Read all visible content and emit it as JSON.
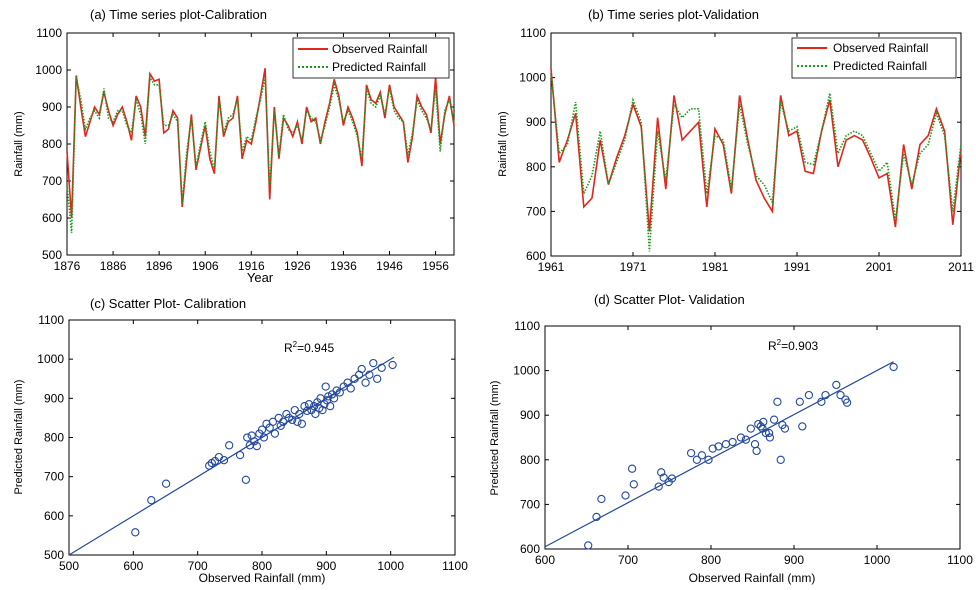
{
  "colors": {
    "observed": "#e1261c",
    "predicted": "#1a9a1a",
    "scatter": "#23489e",
    "axis": "#000000"
  },
  "chart_data": [
    {
      "id": "a",
      "type": "line",
      "title": "(a) Time series plot-Calibration",
      "xlabel": "Year",
      "ylabel": "Rainfall (mm)",
      "xlim": [
        1876,
        1960
      ],
      "ylim": [
        500,
        1100
      ],
      "xticks": [
        1876,
        1886,
        1896,
        1906,
        1916,
        1926,
        1936,
        1946,
        1956
      ],
      "yticks": [
        500,
        600,
        700,
        800,
        900,
        1000,
        1100
      ],
      "legend": {
        "position": "top-right",
        "entries": [
          "Observed Rainfall",
          "Predicted Rainfall"
        ]
      },
      "x": [
        1876,
        1877,
        1878,
        1879,
        1880,
        1881,
        1882,
        1883,
        1884,
        1885,
        1886,
        1887,
        1888,
        1889,
        1890,
        1891,
        1892,
        1893,
        1894,
        1895,
        1896,
        1897,
        1898,
        1899,
        1900,
        1901,
        1902,
        1903,
        1904,
        1905,
        1906,
        1907,
        1908,
        1909,
        1910,
        1911,
        1912,
        1913,
        1914,
        1915,
        1916,
        1917,
        1918,
        1919,
        1920,
        1921,
        1922,
        1923,
        1924,
        1925,
        1926,
        1927,
        1928,
        1929,
        1930,
        1931,
        1932,
        1933,
        1934,
        1935,
        1936,
        1937,
        1938,
        1939,
        1940,
        1941,
        1942,
        1943,
        1944,
        1945,
        1946,
        1947,
        1948,
        1949,
        1950,
        1951,
        1952,
        1953,
        1954,
        1955,
        1956,
        1957,
        1958,
        1959,
        1960
      ],
      "series": [
        {
          "name": "Observed Rainfall",
          "style": "solid",
          "values": [
            780,
            600,
            985,
            900,
            820,
            860,
            900,
            880,
            940,
            890,
            850,
            880,
            900,
            860,
            810,
            930,
            900,
            820,
            990,
            970,
            975,
            830,
            840,
            890,
            870,
            630,
            760,
            880,
            730,
            790,
            850,
            760,
            720,
            930,
            820,
            860,
            870,
            930,
            760,
            810,
            800,
            860,
            930,
            1005,
            650,
            900,
            760,
            870,
            850,
            820,
            860,
            800,
            900,
            860,
            870,
            800,
            860,
            910,
            975,
            930,
            850,
            900,
            870,
            830,
            740,
            960,
            920,
            910,
            940,
            870,
            960,
            900,
            880,
            860,
            750,
            820,
            930,
            900,
            880,
            830,
            980,
            800,
            880,
            930,
            850
          ]
        },
        {
          "name": "Predicted Rainfall",
          "style": "dotted",
          "values": [
            690,
            560,
            980,
            920,
            840,
            870,
            890,
            870,
            950,
            870,
            860,
            890,
            890,
            850,
            830,
            920,
            880,
            800,
            980,
            960,
            960,
            850,
            850,
            880,
            860,
            640,
            780,
            870,
            740,
            800,
            860,
            780,
            730,
            920,
            830,
            870,
            880,
            920,
            780,
            820,
            810,
            870,
            920,
            980,
            680,
            890,
            770,
            880,
            840,
            830,
            850,
            810,
            890,
            870,
            860,
            810,
            850,
            900,
            960,
            920,
            860,
            890,
            860,
            820,
            760,
            950,
            910,
            900,
            930,
            880,
            950,
            890,
            870,
            860,
            770,
            830,
            920,
            890,
            870,
            840,
            950,
            780,
            890,
            920,
            860
          ]
        }
      ]
    },
    {
      "id": "b",
      "type": "line",
      "title": "(b) Time series plot-Validation",
      "xlabel": "",
      "ylabel": "Rainfall (mm)",
      "xlim": [
        1961,
        2011
      ],
      "ylim": [
        600,
        1100
      ],
      "xticks": [
        1961,
        1971,
        1981,
        1991,
        2001,
        2011
      ],
      "yticks": [
        600,
        700,
        800,
        900,
        1000,
        1100
      ],
      "legend": {
        "position": "top-right",
        "entries": [
          "Observed Rainfall",
          "Predicted Rainfall"
        ]
      },
      "x": [
        1961,
        1962,
        1963,
        1964,
        1965,
        1966,
        1967,
        1968,
        1969,
        1970,
        1971,
        1972,
        1973,
        1974,
        1975,
        1976,
        1977,
        1978,
        1979,
        1980,
        1981,
        1982,
        1983,
        1984,
        1985,
        1986,
        1987,
        1988,
        1989,
        1990,
        1991,
        1992,
        1993,
        1994,
        1995,
        1996,
        1997,
        1998,
        1999,
        2000,
        2001,
        2002,
        2003,
        2004,
        2005,
        2006,
        2007,
        2008,
        2009,
        2010,
        2011
      ],
      "series": [
        {
          "name": "Observed Rainfall",
          "style": "solid",
          "values": [
            1020,
            810,
            860,
            920,
            710,
            730,
            860,
            760,
            820,
            870,
            940,
            890,
            655,
            910,
            750,
            960,
            860,
            880,
            900,
            710,
            885,
            850,
            740,
            960,
            860,
            770,
            730,
            700,
            960,
            870,
            880,
            790,
            785,
            880,
            950,
            800,
            860,
            870,
            860,
            820,
            775,
            785,
            665,
            850,
            750,
            850,
            870,
            930,
            880,
            670,
            840
          ]
        },
        {
          "name": "Predicted Rainfall",
          "style": "dotted",
          "values": [
            1010,
            830,
            850,
            945,
            740,
            780,
            880,
            760,
            810,
            860,
            950,
            900,
            610,
            880,
            770,
            940,
            910,
            930,
            930,
            740,
            870,
            860,
            750,
            940,
            850,
            780,
            760,
            720,
            945,
            880,
            890,
            810,
            805,
            880,
            965,
            830,
            870,
            880,
            870,
            830,
            790,
            810,
            680,
            830,
            760,
            830,
            850,
            920,
            870,
            700,
            850
          ]
        }
      ]
    },
    {
      "id": "c",
      "type": "scatter",
      "title": "(c) Scatter Plot- Calibration",
      "xlabel": "Observed Rainfall (mm)",
      "ylabel": "Predicted Rainfall (mm)",
      "xlim": [
        500,
        1100
      ],
      "ylim": [
        500,
        1100
      ],
      "xticks": [
        500,
        600,
        700,
        800,
        900,
        1000,
        1100
      ],
      "yticks": [
        500,
        600,
        700,
        800,
        900,
        1000,
        1100
      ],
      "annotation": {
        "base": "R",
        "sup": "2",
        "rest": "=0.945"
      },
      "fit_line": [
        [
          500,
          500
        ],
        [
          1005,
          1005
        ]
      ],
      "points": [
        [
          603,
          558
        ],
        [
          628,
          640
        ],
        [
          651,
          682
        ],
        [
          718,
          728
        ],
        [
          722,
          735
        ],
        [
          727,
          740
        ],
        [
          733,
          750
        ],
        [
          741,
          742
        ],
        [
          749,
          780
        ],
        [
          766,
          755
        ],
        [
          775,
          692
        ],
        [
          777,
          800
        ],
        [
          781,
          780
        ],
        [
          784,
          805
        ],
        [
          788,
          790
        ],
        [
          792,
          778
        ],
        [
          796,
          810
        ],
        [
          800,
          820
        ],
        [
          803,
          800
        ],
        [
          807,
          835
        ],
        [
          812,
          825
        ],
        [
          817,
          840
        ],
        [
          820,
          810
        ],
        [
          826,
          850
        ],
        [
          829,
          830
        ],
        [
          833,
          840
        ],
        [
          838,
          860
        ],
        [
          842,
          850
        ],
        [
          847,
          845
        ],
        [
          851,
          870
        ],
        [
          855,
          840
        ],
        [
          858,
          860
        ],
        [
          862,
          835
        ],
        [
          866,
          880
        ],
        [
          870,
          868
        ],
        [
          873,
          885
        ],
        [
          877,
          870
        ],
        [
          881,
          880
        ],
        [
          883,
          860
        ],
        [
          886,
          890
        ],
        [
          889,
          875
        ],
        [
          891,
          900
        ],
        [
          894,
          870
        ],
        [
          897,
          885
        ],
        [
          899,
          930
        ],
        [
          901,
          895
        ],
        [
          903,
          905
        ],
        [
          906,
          880
        ],
        [
          909,
          910
        ],
        [
          912,
          900
        ],
        [
          916,
          920
        ],
        [
          921,
          915
        ],
        [
          927,
          930
        ],
        [
          933,
          940
        ],
        [
          938,
          925
        ],
        [
          944,
          950
        ],
        [
          951,
          960
        ],
        [
          955,
          975
        ],
        [
          961,
          940
        ],
        [
          967,
          960
        ],
        [
          973,
          990
        ],
        [
          979,
          950
        ],
        [
          986,
          978
        ],
        [
          1003,
          985
        ]
      ]
    },
    {
      "id": "d",
      "type": "scatter",
      "title": "(d) Scatter Plot- Validation",
      "xlabel": "Observed Rainfall (mm)",
      "ylabel": "Predicted Rainfall (mm)",
      "xlim": [
        600,
        1100
      ],
      "ylim": [
        600,
        1100
      ],
      "xticks": [
        600,
        700,
        800,
        900,
        1000,
        1100
      ],
      "yticks": [
        600,
        700,
        800,
        900,
        1000,
        1100
      ],
      "annotation": {
        "base": "R",
        "sup": "2",
        "rest": "=0.903"
      },
      "fit_line": [
        [
          600,
          605
        ],
        [
          1020,
          1020
        ]
      ],
      "points": [
        [
          652,
          608
        ],
        [
          662,
          672
        ],
        [
          668,
          712
        ],
        [
          697,
          720
        ],
        [
          705,
          780
        ],
        [
          707,
          745
        ],
        [
          737,
          740
        ],
        [
          740,
          772
        ],
        [
          743,
          760
        ],
        [
          749,
          750
        ],
        [
          753,
          758
        ],
        [
          776,
          815
        ],
        [
          783,
          800
        ],
        [
          789,
          810
        ],
        [
          797,
          800
        ],
        [
          802,
          825
        ],
        [
          809,
          830
        ],
        [
          818,
          835
        ],
        [
          826,
          840
        ],
        [
          836,
          850
        ],
        [
          842,
          845
        ],
        [
          848,
          870
        ],
        [
          853,
          835
        ],
        [
          855,
          820
        ],
        [
          857,
          880
        ],
        [
          860,
          875
        ],
        [
          862,
          870
        ],
        [
          863,
          885
        ],
        [
          866,
          860
        ],
        [
          870,
          860
        ],
        [
          871,
          850
        ],
        [
          876,
          890
        ],
        [
          880,
          930
        ],
        [
          884,
          800
        ],
        [
          886,
          878
        ],
        [
          889,
          870
        ],
        [
          907,
          930
        ],
        [
          910,
          875
        ],
        [
          918,
          945
        ],
        [
          933,
          930
        ],
        [
          938,
          945
        ],
        [
          951,
          968
        ],
        [
          956,
          945
        ],
        [
          962,
          935
        ],
        [
          964,
          928
        ],
        [
          1020,
          1008
        ]
      ]
    }
  ]
}
